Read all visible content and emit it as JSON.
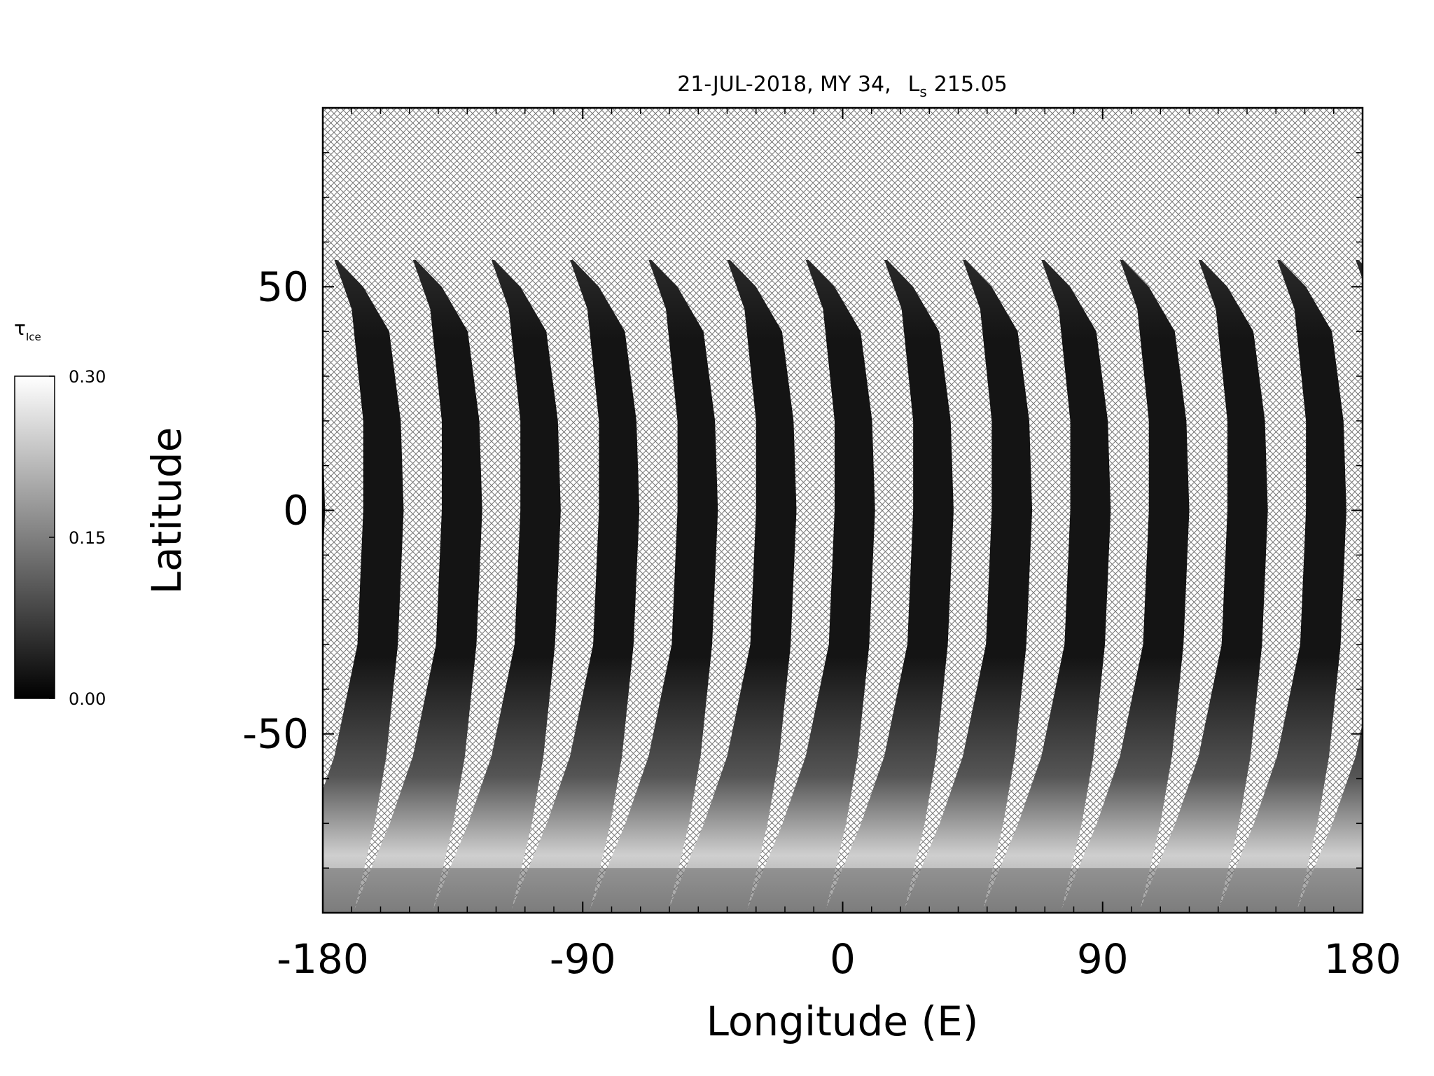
{
  "chart_data": {
    "type": "map",
    "title": "21-JUL-2018, MY 34,",
    "solar_longitude": {
      "symbol": "L",
      "subscript": "s",
      "value": 215.05
    },
    "x_label": "Longitude (E)",
    "y_label": "Latitude",
    "xlim": [
      -180,
      180
    ],
    "ylim": [
      -90,
      90
    ],
    "xticks": [
      -180,
      -90,
      0,
      90,
      180
    ],
    "yticks": [
      -50,
      0,
      50
    ],
    "xminorticks": [
      -170,
      -160,
      -150,
      -140,
      -130,
      -120,
      -110,
      -100,
      -80,
      -70,
      -60,
      -50,
      -40,
      -30,
      -20,
      -10,
      10,
      20,
      30,
      40,
      50,
      60,
      70,
      80,
      100,
      110,
      120,
      130,
      140,
      150,
      160,
      170
    ],
    "yminorticks": [
      -80,
      -70,
      -60,
      -40,
      -30,
      -20,
      -10,
      10,
      20,
      30,
      40,
      60,
      70,
      80
    ],
    "colorbar": {
      "symbol": "τ",
      "subscript": "Ice",
      "lim": [
        0,
        0.3
      ],
      "ticks": [
        {
          "value": 0,
          "label": "0.00"
        },
        {
          "value": 0.15,
          "label": "0.15"
        },
        {
          "value": 0.3,
          "label": "0.30"
        }
      ],
      "colors": [
        "#000000",
        "#ffffff"
      ]
    }
  }
}
